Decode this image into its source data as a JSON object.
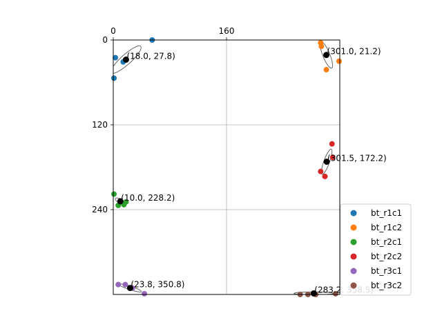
{
  "chart_data": {
    "type": "scatter",
    "title": "",
    "xlabel": "",
    "ylabel": "",
    "xlim": [
      0,
      320
    ],
    "ylim": [
      360,
      0
    ],
    "y_inverted": true,
    "x_axis_position": "top",
    "xticks": [
      0,
      160
    ],
    "xtick_labels": [
      "0",
      "160"
    ],
    "yticks": [
      0,
      120,
      240
    ],
    "ytick_labels": [
      "0",
      "120",
      "240"
    ],
    "grid": true,
    "legend_position": "lower-right",
    "series": [
      {
        "name": "bt_r1c1",
        "color": "#1f77b4",
        "points": [
          [
            1,
            54
          ],
          [
            3,
            25
          ],
          [
            14,
            31
          ],
          [
            55,
            0
          ]
        ]
      },
      {
        "name": "bt_r1c2",
        "color": "#ff7f0e",
        "points": [
          [
            293,
            4
          ],
          [
            294,
            9
          ],
          [
            301,
            42
          ],
          [
            319,
            30
          ]
        ]
      },
      {
        "name": "bt_r2c1",
        "color": "#2ca02c",
        "points": [
          [
            1,
            218
          ],
          [
            7,
            234
          ],
          [
            15,
            233
          ],
          [
            18,
            229
          ]
        ]
      },
      {
        "name": "bt_r2c2",
        "color": "#d62728",
        "points": [
          [
            293,
            186
          ],
          [
            299,
            193
          ],
          [
            309,
            147
          ],
          [
            310,
            166
          ]
        ]
      },
      {
        "name": "bt_r3c1",
        "color": "#9467bd",
        "points": [
          [
            7,
            346
          ],
          [
            17,
            346
          ],
          [
            27,
            351
          ],
          [
            44,
            359
          ]
        ]
      },
      {
        "name": "bt_r3c2",
        "color": "#8c564b",
        "points": [
          [
            264,
            360
          ],
          [
            275,
            360
          ],
          [
            286,
            360
          ],
          [
            314,
            359
          ]
        ]
      }
    ],
    "centroids": [
      {
        "x": 18.0,
        "y": 27.8,
        "label": "(18.0, 27.8)"
      },
      {
        "x": 301.0,
        "y": 21.2,
        "label": "(301.0, 21.2)"
      },
      {
        "x": 301.5,
        "y": 172.2,
        "label": "(301.5, 172.2)"
      },
      {
        "x": 10.0,
        "y": 228.2,
        "label": "(10.0, 228.2)"
      },
      {
        "x": 23.8,
        "y": 350.8,
        "label": "(23.8, 350.8)"
      },
      {
        "x": 283.2,
        "y": 358.5,
        "label": "(283.2, 358.5)"
      }
    ],
    "ellipses": [
      {
        "cx": 18.0,
        "cy": 27.8,
        "rx": 28,
        "ry": 7,
        "angle_deg": -42
      },
      {
        "cx": 301.0,
        "cy": 21.2,
        "rx": 20,
        "ry": 5,
        "angle_deg": 68
      },
      {
        "cx": 301.5,
        "cy": 172.2,
        "rx": 19,
        "ry": 4,
        "angle_deg": -70
      },
      {
        "cx": 10.0,
        "cy": 228.2,
        "rx": 8,
        "ry": 3,
        "angle_deg": 30
      },
      {
        "cx": 23.8,
        "cy": 350.8,
        "rx": 17,
        "ry": 2.5,
        "angle_deg": 18
      },
      {
        "cx": 283.2,
        "cy": 358.5,
        "rx": 28,
        "ry": 2,
        "angle_deg": 0
      }
    ]
  }
}
